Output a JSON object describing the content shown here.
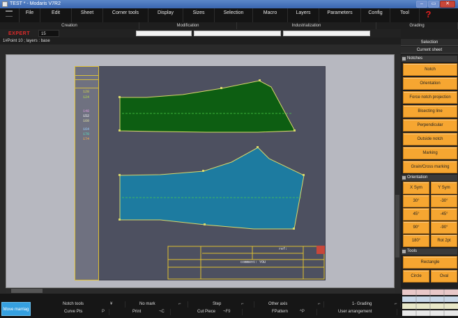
{
  "window": {
    "title": "TEST * - Modaris V7R2"
  },
  "menu": {
    "app_label": "www",
    "items": [
      "File",
      "Edit",
      "Sheet",
      "Corner tools",
      "Display",
      "Sizes",
      "Selection",
      "Macro",
      "Layers",
      "Parameters",
      "Config",
      "Tool"
    ],
    "help_symbol": "?"
  },
  "subbar": {
    "items": [
      "Creation",
      "Modification",
      "Industrialization",
      "Grading"
    ]
  },
  "toolbar": {
    "mode_label": "EXPERT",
    "number_value": "15"
  },
  "status": {
    "text": "1#Point 10 ;   layers : base"
  },
  "piece_strip": {
    "labels": [
      "128",
      "124",
      "148",
      "152",
      "160",
      "164",
      "170",
      "174"
    ],
    "colors": [
      "#d8d84a",
      "#b6e04a",
      "#e09ae0",
      "#ffffff",
      "#e0e0a0",
      "#9ad0ff",
      "#5ae0c0",
      "#ffb04a"
    ]
  },
  "title_block": {
    "ref_label": "ref:",
    "comment_label": "comment: YOU"
  },
  "right_panel": {
    "tabs": [
      "Selection",
      "Current sheet"
    ],
    "sections": {
      "notches": "Notches",
      "orientation": "Orientation",
      "tools": "Tools"
    },
    "notch_buttons": [
      "Notch",
      "Orientation",
      "Force notch projection",
      "Bisecting line",
      "Perpendicular",
      "Outside notch",
      "Marking",
      "Grain/Cross marking"
    ],
    "orientation_buttons": [
      "X Sym",
      "Y Sym",
      "30°",
      "-30°",
      "45°",
      "-45°",
      "90°",
      "-90°",
      "180°",
      "Rot 2pt"
    ],
    "tools_buttons": [
      "Rectangle",
      "Circle",
      "Oval"
    ]
  },
  "bottom": {
    "mode_button": "Move marriag",
    "row1": [
      "Notch tools",
      "No mark",
      "Step",
      "Other axis",
      "1- Grading"
    ],
    "row1_keys": [
      "¥",
      "⌐",
      "⌐",
      "⌐",
      "⌐"
    ],
    "row2": [
      "Curve Pts",
      "Print",
      "Cut Piece",
      "FPattern",
      "User arrangement"
    ],
    "row2_keys": [
      "P",
      "¬C",
      "¬F9",
      "^P",
      ""
    ]
  },
  "colors": {
    "accent_orange": "#f6a631",
    "green_piece": "#0d5e12",
    "blue_piece": "#1d7ba0",
    "expert_red": "#e02a2a"
  }
}
